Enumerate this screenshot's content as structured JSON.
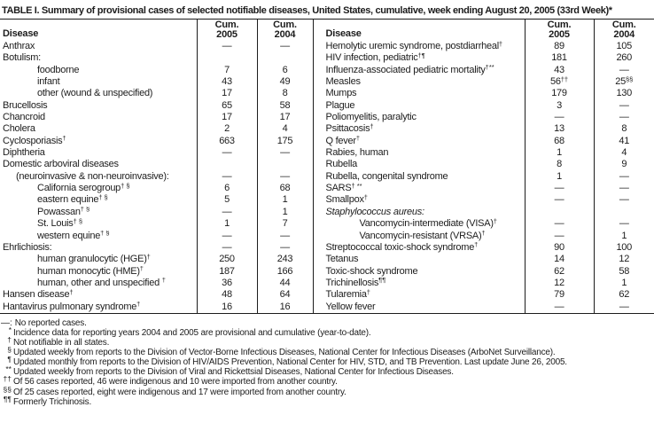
{
  "title": "TABLE I. Summary of provisional cases of selected notifiable diseases, United States, cumulative, week ending August 20, 2005 (33rd Week)*",
  "header": {
    "disease_left": "Disease",
    "disease_right": "Disease",
    "cum_label": "Cum.",
    "year_2005": "2005",
    "year_2004": "2004"
  },
  "left_rows": [
    {
      "label": "Anthrax",
      "indent": 0,
      "v2005": "—",
      "v2004": "—"
    },
    {
      "label": "Botulism:",
      "indent": 0,
      "v2005": "",
      "v2004": ""
    },
    {
      "label": "foodborne",
      "indent": 2,
      "v2005": "7",
      "v2004": "6"
    },
    {
      "label": "infant",
      "indent": 2,
      "v2005": "43",
      "v2004": "49"
    },
    {
      "label": "other (wound & unspecified)",
      "indent": 2,
      "v2005": "17",
      "v2004": "8"
    },
    {
      "label": "Brucellosis",
      "indent": 0,
      "v2005": "65",
      "v2004": "58"
    },
    {
      "label": "Chancroid",
      "indent": 0,
      "v2005": "17",
      "v2004": "17"
    },
    {
      "label": "Cholera",
      "indent": 0,
      "v2005": "2",
      "v2004": "4"
    },
    {
      "label": "Cyclosporiasis",
      "sup": "†",
      "indent": 0,
      "v2005": "663",
      "v2004": "175"
    },
    {
      "label": "Diphtheria",
      "indent": 0,
      "v2005": "—",
      "v2004": "—"
    },
    {
      "label": "Domestic arboviral diseases",
      "indent": 0,
      "v2005": "",
      "v2004": ""
    },
    {
      "label": "(neuroinvasive & non-neuroinvasive):",
      "indent": 1,
      "v2005": "—",
      "v2004": "—"
    },
    {
      "label": "California serogroup",
      "sup": "† §",
      "indent": 2,
      "v2005": "6",
      "v2004": "68"
    },
    {
      "label": "eastern equine",
      "sup": "† §",
      "indent": 2,
      "v2005": "5",
      "v2004": "1"
    },
    {
      "label": "Powassan",
      "sup": "† §",
      "indent": 2,
      "v2005": "—",
      "v2004": "1"
    },
    {
      "label": "St. Louis",
      "sup": "† §",
      "indent": 2,
      "v2005": "1",
      "v2004": "7"
    },
    {
      "label": "western equine",
      "sup": "† §",
      "indent": 2,
      "v2005": "—",
      "v2004": "—"
    },
    {
      "label": "Ehrlichiosis:",
      "indent": 0,
      "v2005": "—",
      "v2004": "—"
    },
    {
      "label": "human granulocytic (HGE)",
      "sup": "†",
      "indent": 2,
      "v2005": "250",
      "v2004": "243"
    },
    {
      "label": "human monocytic (HME)",
      "sup": "†",
      "indent": 2,
      "v2005": "187",
      "v2004": "166"
    },
    {
      "label": "human, other and unspecified ",
      "sup": "†",
      "indent": 2,
      "v2005": "36",
      "v2004": "44"
    },
    {
      "label": "Hansen disease",
      "sup": "†",
      "indent": 0,
      "v2005": "48",
      "v2004": "64"
    },
    {
      "label": "Hantavirus pulmonary syndrome",
      "sup": "†",
      "indent": 0,
      "v2005": "16",
      "v2004": "16"
    }
  ],
  "right_rows": [
    {
      "label": "Hemolytic uremic syndrome, postdiarrheal",
      "sup": "†",
      "indent": 0,
      "v2005": "89",
      "v2004": "105"
    },
    {
      "label": "HIV infection, pediatric",
      "sup": "†¶",
      "indent": 0,
      "v2005": "181",
      "v2004": "260"
    },
    {
      "label": "Influenza-associated pediatric mortality",
      "sup": "†**",
      "indent": 0,
      "v2005": "43",
      "v2004": "—"
    },
    {
      "label": "Measles",
      "indent": 0,
      "v2005": "56",
      "s2005": "††",
      "v2004": "25",
      "s2004": "§§"
    },
    {
      "label": "Mumps",
      "indent": 0,
      "v2005": "179",
      "v2004": "130"
    },
    {
      "label": "Plague",
      "indent": 0,
      "v2005": "3",
      "v2004": "—"
    },
    {
      "label": "Poliomyelitis, paralytic",
      "indent": 0,
      "v2005": "—",
      "v2004": "—"
    },
    {
      "label": "Psittacosis",
      "sup": "†",
      "indent": 0,
      "v2005": "13",
      "v2004": "8"
    },
    {
      "label": "Q fever",
      "sup": "†",
      "indent": 0,
      "v2005": "68",
      "v2004": "41"
    },
    {
      "label": "Rabies, human",
      "indent": 0,
      "v2005": "1",
      "v2004": "4"
    },
    {
      "label": "Rubella",
      "indent": 0,
      "v2005": "8",
      "v2004": "9"
    },
    {
      "label": "Rubella, congenital syndrome",
      "indent": 0,
      "v2005": "1",
      "v2004": "—"
    },
    {
      "label": "SARS",
      "sup": "† **",
      "indent": 0,
      "v2005": "—",
      "v2004": "—"
    },
    {
      "label": "Smallpox",
      "sup": "†",
      "indent": 0,
      "v2005": "—",
      "v2004": "—"
    },
    {
      "label": "Staphylococcus aureus:",
      "italic": true,
      "indent": 0,
      "v2005": "",
      "v2004": ""
    },
    {
      "label": "Vancomycin-intermediate (VISA)",
      "sup": "†",
      "indent": 2,
      "v2005": "—",
      "v2004": "—"
    },
    {
      "label": "Vancomycin-resistant (VRSA)",
      "sup": "†",
      "indent": 2,
      "v2005": "—",
      "v2004": "1"
    },
    {
      "label": "Streptococcal toxic-shock syndrome",
      "sup": "†",
      "indent": 0,
      "v2005": "90",
      "v2004": "100"
    },
    {
      "label": "Tetanus",
      "indent": 0,
      "v2005": "14",
      "v2004": "12"
    },
    {
      "label": "Toxic-shock syndrome",
      "indent": 0,
      "v2005": "62",
      "v2004": "58"
    },
    {
      "label": "Trichinellosis",
      "sup": "¶¶",
      "indent": 0,
      "v2005": "12",
      "v2004": "1"
    },
    {
      "label": "Tularemia",
      "sup": "†",
      "indent": 0,
      "v2005": "79",
      "v2004": "62"
    },
    {
      "label": "Yellow fever",
      "indent": 0,
      "v2005": "—",
      "v2004": "—"
    }
  ],
  "footnotes": [
    {
      "marker": "—:",
      "sup": false,
      "text": "No reported cases."
    },
    {
      "marker": "*",
      "sup": true,
      "text": "Incidence data for reporting years 2004 and 2005 are provisional and cumulative (year-to-date)."
    },
    {
      "marker": "†",
      "sup": true,
      "text": "Not notifiable in all states."
    },
    {
      "marker": "§",
      "sup": true,
      "text": "Updated weekly from reports to the Division of Vector-Borne Infectious Diseases, National Center for Infectious Diseases (ArboNet Surveillance)."
    },
    {
      "marker": "¶",
      "sup": true,
      "text": "Updated monthly from reports to the Division of HIV/AIDS Prevention, National Center for HIV, STD, and TB Prevention. Last update June 26, 2005."
    },
    {
      "marker": "**",
      "sup": true,
      "text": "Updated weekly from reports to the Division of Viral and Rickettsial Diseases, National Center for Infectious Diseases."
    },
    {
      "marker": "††",
      "sup": true,
      "text": "Of 56 cases reported, 46 were indigenous and 10 were imported from another country."
    },
    {
      "marker": "§§",
      "sup": true,
      "text": "Of 25 cases reported, eight were indigenous and 17 were imported from another country."
    },
    {
      "marker": "¶¶",
      "sup": true,
      "text": "Formerly Trichinosis."
    }
  ]
}
